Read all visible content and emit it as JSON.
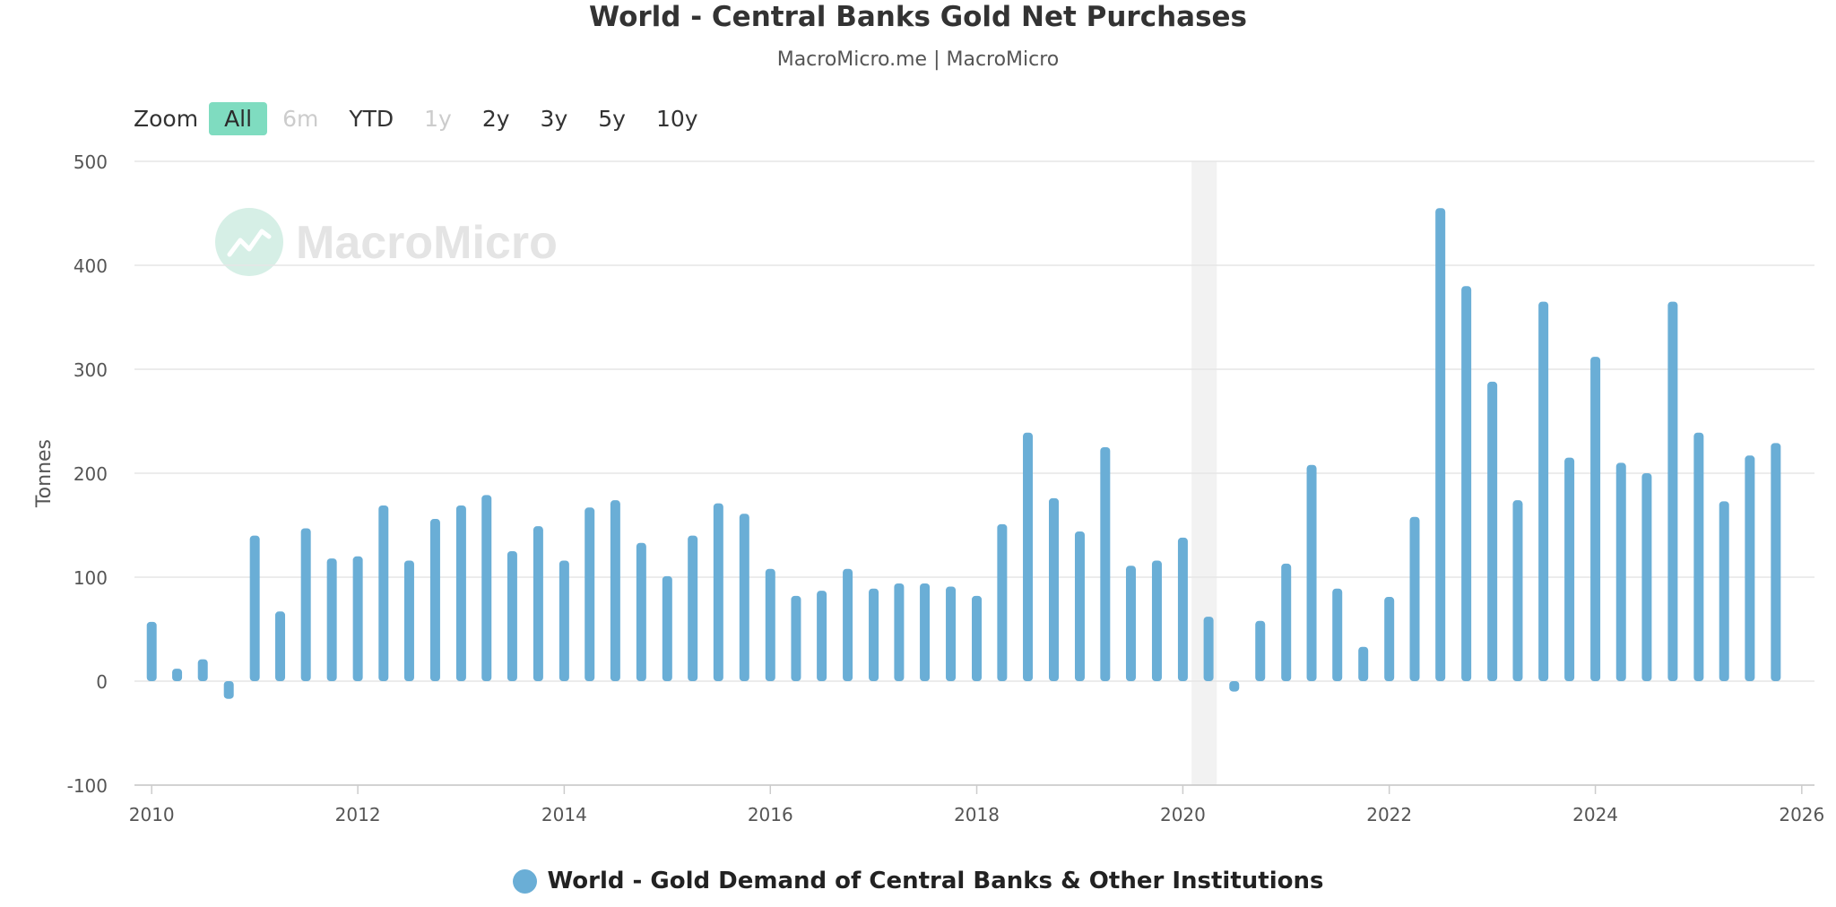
{
  "title": "World - Central Banks Gold Net Purchases",
  "subtitle": "MacroMicro.me | MacroMicro",
  "watermark": "MacroMicro",
  "zoom": {
    "label": "Zoom",
    "options": [
      {
        "label": "All",
        "state": "active"
      },
      {
        "label": "6m",
        "state": "disabled"
      },
      {
        "label": "YTD",
        "state": "normal"
      },
      {
        "label": "1y",
        "state": "disabled"
      },
      {
        "label": "2y",
        "state": "normal"
      },
      {
        "label": "3y",
        "state": "normal"
      },
      {
        "label": "5y",
        "state": "normal"
      },
      {
        "label": "10y",
        "state": "normal"
      }
    ]
  },
  "colors": {
    "bar": "#6aaed6",
    "grid": "#e6e6e6",
    "axis": "#cccccc",
    "recession_band": "#f2f2f2",
    "zoom_active": "#7fdcc0",
    "watermark": "#d6efe6"
  },
  "chart_data": {
    "type": "bar",
    "title": "World - Central Banks Gold Net Purchases",
    "subtitle": "MacroMicro.me | MacroMicro",
    "ylabel": "Tonnes",
    "ylim": [
      -100,
      500
    ],
    "yticks": [
      -100,
      0,
      100,
      200,
      300,
      400,
      500
    ],
    "xlim": [
      "2009-11-01",
      "2026-02-15"
    ],
    "xtick_labels": [
      "2010",
      "2012",
      "2014",
      "2016",
      "2018",
      "2020",
      "2022",
      "2024",
      "2026"
    ],
    "grid": true,
    "legend_position": "bottom-center",
    "shaded_periods": [
      {
        "start": "2020-02-01",
        "end": "2020-04-30"
      }
    ],
    "series": [
      {
        "name": "World - Gold Demand of Central Banks & Other Institutions",
        "x": [
          "2010-01-01",
          "2010-04-01",
          "2010-07-01",
          "2010-10-01",
          "2011-01-01",
          "2011-04-01",
          "2011-07-01",
          "2011-10-01",
          "2012-01-01",
          "2012-04-01",
          "2012-07-01",
          "2012-10-01",
          "2013-01-01",
          "2013-04-01",
          "2013-07-01",
          "2013-10-01",
          "2014-01-01",
          "2014-04-01",
          "2014-07-01",
          "2014-10-01",
          "2015-01-01",
          "2015-04-01",
          "2015-07-01",
          "2015-10-01",
          "2016-01-01",
          "2016-04-01",
          "2016-07-01",
          "2016-10-01",
          "2017-01-01",
          "2017-04-01",
          "2017-07-01",
          "2017-10-01",
          "2018-01-01",
          "2018-04-01",
          "2018-07-01",
          "2018-10-01",
          "2019-01-01",
          "2019-04-01",
          "2019-07-01",
          "2019-10-01",
          "2020-01-01",
          "2020-04-01",
          "2020-07-01",
          "2020-10-01",
          "2021-01-01",
          "2021-04-01",
          "2021-07-01",
          "2021-10-01",
          "2022-01-01",
          "2022-04-01",
          "2022-07-01",
          "2022-10-01",
          "2023-01-01",
          "2023-04-01",
          "2023-07-01",
          "2023-10-01",
          "2024-01-01",
          "2024-04-01",
          "2024-07-01",
          "2024-10-01",
          "2025-01-01",
          "2025-04-01",
          "2025-07-01",
          "2025-10-01"
        ],
        "values": [
          57,
          12,
          21,
          -17,
          140,
          67,
          147,
          118,
          120,
          169,
          116,
          156,
          169,
          179,
          125,
          149,
          116,
          167,
          174,
          133,
          101,
          140,
          171,
          161,
          108,
          82,
          87,
          108,
          89,
          94,
          94,
          91,
          82,
          151,
          239,
          176,
          144,
          225,
          111,
          116,
          138,
          62,
          -10,
          58,
          113,
          208,
          89,
          33,
          81,
          158,
          455,
          380,
          288,
          174,
          365,
          215,
          312,
          210,
          200,
          365,
          239,
          173,
          217,
          229
        ]
      }
    ]
  }
}
